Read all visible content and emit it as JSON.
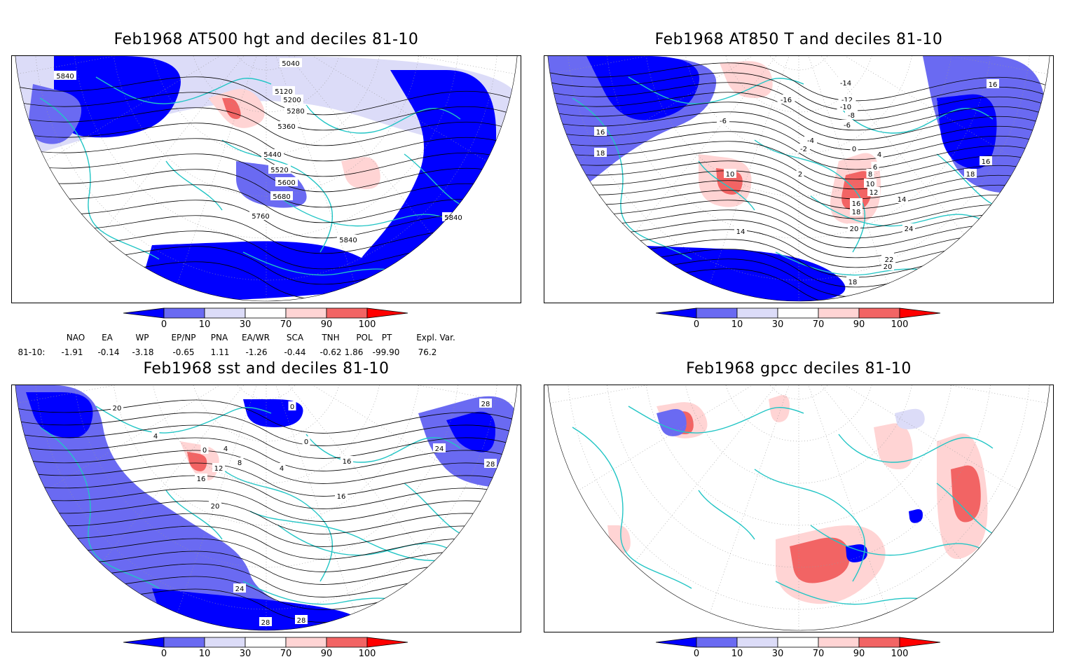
{
  "panels": [
    {
      "id": "at500",
      "title": "Feb1968 AT500 hgt and deciles 81-10",
      "contour_labels": [
        "5040",
        "5120",
        "5200",
        "5280",
        "5360",
        "5440",
        "5520",
        "5600",
        "5680",
        "5760",
        "5840",
        "5840",
        "5840"
      ]
    },
    {
      "id": "at850",
      "title": "Feb1968 AT850 T and deciles 81-10",
      "contour_labels": [
        "-14",
        "-12",
        "-10",
        "-8",
        "-6",
        "-4",
        "-2",
        "0",
        "2",
        "4",
        "6",
        "8",
        "10",
        "12",
        "14",
        "16",
        "18",
        "20",
        "22",
        "24",
        "10",
        "14",
        "16",
        "18",
        "16",
        "18",
        "16",
        "-6",
        "-16",
        "18",
        "20",
        "22"
      ]
    },
    {
      "id": "sst",
      "title": "Feb1968 sst and deciles 81-10",
      "contour_labels": [
        "20",
        "4",
        "0",
        "4",
        "8",
        "12",
        "16",
        "20",
        "24",
        "28",
        "28",
        "28",
        "16",
        "16",
        "24",
        "28",
        "0",
        "0",
        "4"
      ]
    },
    {
      "id": "gpcc",
      "title": "Feb1968 gpcc deciles 81-10",
      "contour_labels": []
    }
  ],
  "colorbar": {
    "ticks": [
      "0",
      "10",
      "30",
      "70",
      "90",
      "100"
    ],
    "colors": [
      "#0000ff",
      "#6a6af2",
      "#dcdcf8",
      "#ffffff",
      "#ffd4d4",
      "#f26464",
      "#ff0000"
    ]
  },
  "indices": {
    "row_label": "81-10:",
    "headers": [
      "NAO",
      "EA",
      "WP",
      "EP/NP",
      "PNA",
      "EA/WR",
      "SCA",
      "TNH",
      "POL",
      "PT",
      "Expl. Var."
    ],
    "values": [
      "-1.91",
      "-0.14",
      "-3.18",
      "-0.65",
      "1.11",
      "-1.26",
      "-0.44",
      "-0.62",
      "1.86",
      "-99.90",
      "76.2"
    ]
  }
}
